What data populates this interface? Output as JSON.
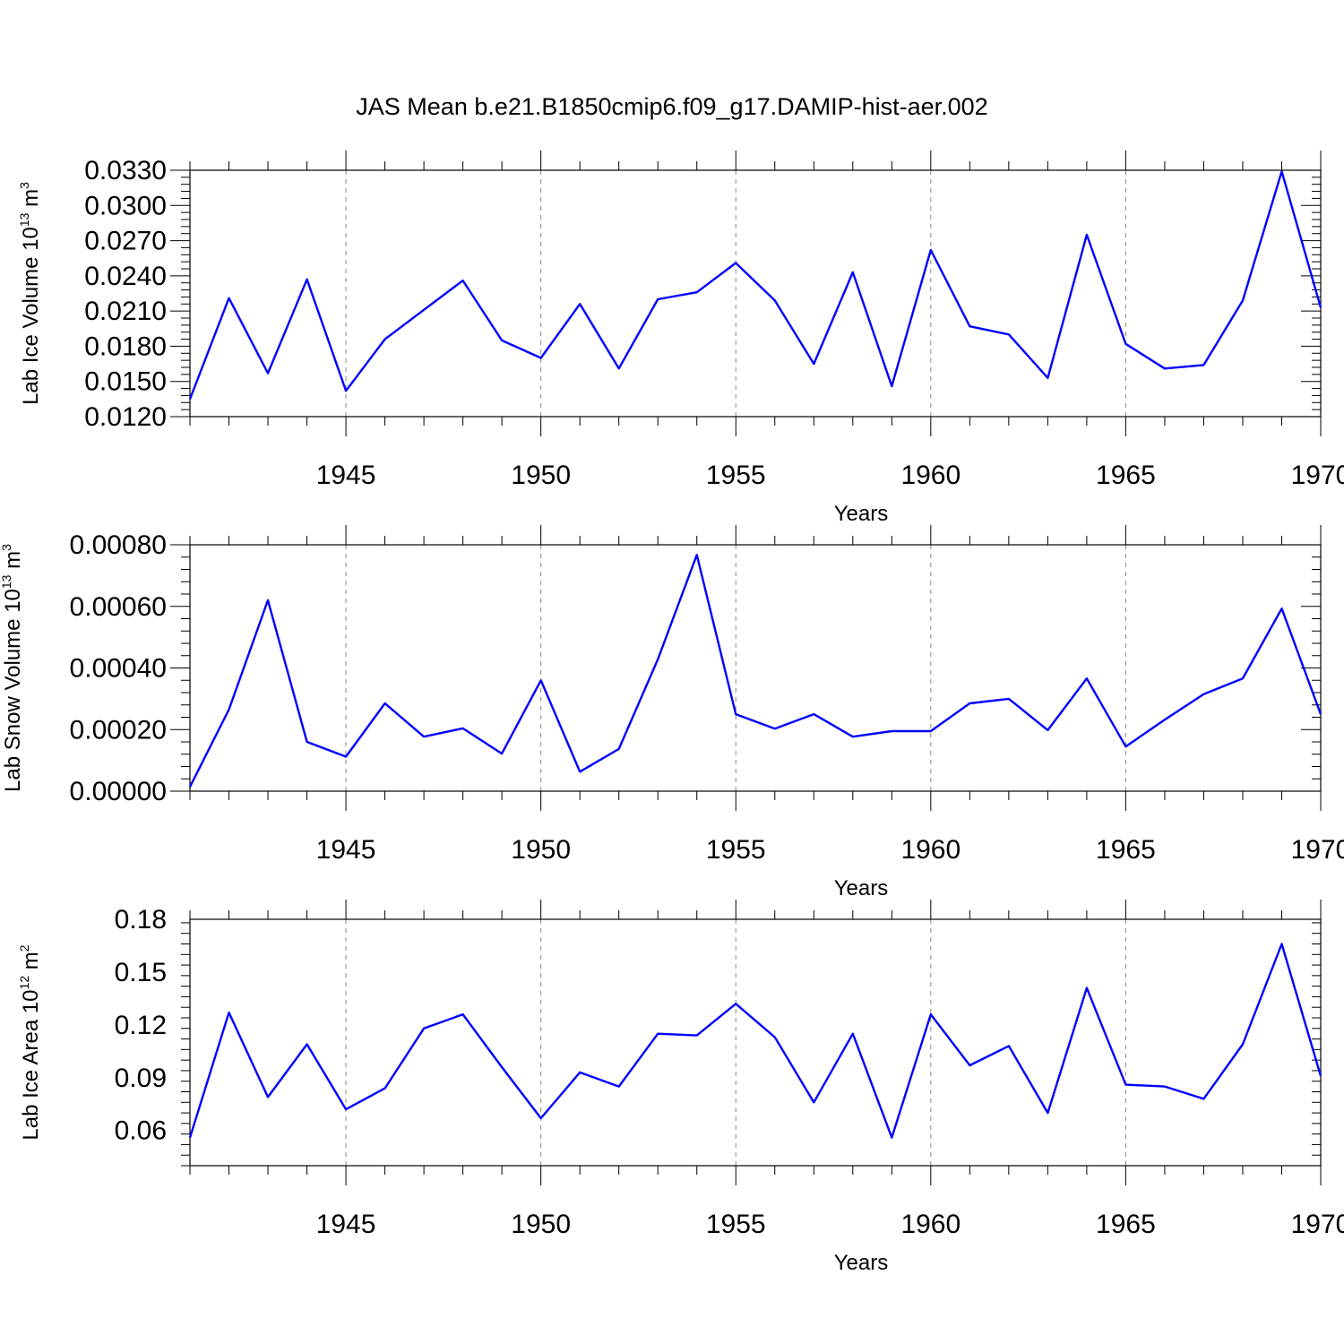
{
  "title": "JAS Mean b.e21.B1850cmip6.f09_g17.DAMIP-hist-aer.002",
  "colors": {
    "line": "#0000ff",
    "grid": "#888888"
  },
  "chart_data": [
    {
      "type": "line",
      "ylabel": {
        "main": "Lab Ice Volume 10",
        "exp": "13",
        "unit": " m",
        "unit_exp": "3"
      },
      "xlabel": "Years",
      "xlim": [
        1941,
        1970
      ],
      "xticks": [
        1945,
        1950,
        1955,
        1960,
        1965,
        1970
      ],
      "xtick_labels": [
        "1945",
        "1950",
        "1955",
        "1960",
        "1965",
        "1970"
      ],
      "ylim": [
        0.012,
        0.033
      ],
      "yticks": [
        0.012,
        0.015,
        0.018,
        0.021,
        0.024,
        0.027,
        0.03,
        0.033
      ],
      "ytick_labels": [
        "0.0120",
        "0.0150",
        "0.0180",
        "0.0210",
        "0.0240",
        "0.0270",
        "0.0300",
        "0.0330"
      ],
      "grid": "vertical dashed at major x ticks",
      "series": [
        {
          "name": "Lab Ice Volume",
          "x": [
            1941,
            1942,
            1943,
            1944,
            1945,
            1946,
            1947,
            1948,
            1949,
            1950,
            1951,
            1952,
            1953,
            1954,
            1955,
            1956,
            1957,
            1958,
            1959,
            1960,
            1961,
            1962,
            1963,
            1964,
            1965,
            1966,
            1967,
            1968,
            1969,
            1970
          ],
          "values": [
            0.0135,
            0.0221,
            0.0157,
            0.0237,
            0.0142,
            0.0186,
            0.0211,
            0.0236,
            0.0185,
            0.017,
            0.0216,
            0.0161,
            0.022,
            0.0226,
            0.0251,
            0.0219,
            0.0165,
            0.0243,
            0.0146,
            0.0262,
            0.0197,
            0.019,
            0.0153,
            0.0275,
            0.0182,
            0.0161,
            0.0164,
            0.0219,
            0.0329,
            0.0213
          ]
        }
      ]
    },
    {
      "type": "line",
      "ylabel": {
        "main": "Lab Snow Volume 10",
        "exp": "13",
        "unit": " m",
        "unit_exp": "3"
      },
      "xlabel": "Years",
      "xlim": [
        1941,
        1970
      ],
      "xticks": [
        1945,
        1950,
        1955,
        1960,
        1965,
        1970
      ],
      "xtick_labels": [
        "1945",
        "1950",
        "1955",
        "1960",
        "1965",
        "1970"
      ],
      "ylim": [
        0.0,
        0.0008
      ],
      "yticks": [
        0.0,
        0.0002,
        0.0004,
        0.0006,
        0.0008
      ],
      "ytick_labels": [
        "0.00000",
        "0.00020",
        "0.00040",
        "0.00060",
        "0.00080"
      ],
      "grid": "vertical dashed at major x ticks",
      "series": [
        {
          "name": "Lab Snow Volume",
          "x": [
            1941,
            1942,
            1943,
            1944,
            1945,
            1946,
            1947,
            1948,
            1949,
            1950,
            1951,
            1952,
            1953,
            1954,
            1955,
            1956,
            1957,
            1958,
            1959,
            1960,
            1961,
            1962,
            1963,
            1964,
            1965,
            1966,
            1967,
            1968,
            1969,
            1970
          ],
          "values": [
            1.4e-05,
            0.000265,
            0.00062,
            0.00016,
            0.000112,
            0.000285,
            0.000177,
            0.000204,
            0.000122,
            0.00036,
            6.3e-05,
            0.000137,
            0.000428,
            0.000767,
            0.00025,
            0.000203,
            0.00025,
            0.000177,
            0.000195,
            0.000195,
            0.000285,
            0.0003,
            0.000198,
            0.000366,
            0.000145,
            0.000232,
            0.000315,
            0.000366,
            0.000593,
            0.00025
          ]
        }
      ]
    },
    {
      "type": "line",
      "ylabel": {
        "main": "Lab Ice Area 10",
        "exp": "12",
        "unit": " m",
        "unit_exp": "2"
      },
      "xlabel": "Years",
      "xlim": [
        1941,
        1970
      ],
      "xticks": [
        1945,
        1950,
        1955,
        1960,
        1965,
        1970
      ],
      "xtick_labels": [
        "1945",
        "1950",
        "1955",
        "1960",
        "1965",
        "1970"
      ],
      "ylim": [
        0.04,
        0.18
      ],
      "yticks": [
        0.06,
        0.09,
        0.12,
        0.15,
        0.18
      ],
      "ytick_labels": [
        "0.06",
        "0.09",
        "0.12",
        "0.15",
        "0.18"
      ],
      "grid": "vertical dashed at major x ticks",
      "series": [
        {
          "name": "Lab Ice Area",
          "x": [
            1941,
            1942,
            1943,
            1944,
            1945,
            1946,
            1947,
            1948,
            1949,
            1950,
            1951,
            1952,
            1953,
            1954,
            1955,
            1956,
            1957,
            1958,
            1959,
            1960,
            1961,
            1962,
            1963,
            1964,
            1965,
            1966,
            1967,
            1968,
            1969,
            1970
          ],
          "values": [
            0.056,
            0.127,
            0.079,
            0.109,
            0.072,
            0.084,
            0.118,
            0.126,
            0.096,
            0.067,
            0.093,
            0.085,
            0.115,
            0.114,
            0.132,
            0.113,
            0.076,
            0.115,
            0.056,
            0.126,
            0.097,
            0.108,
            0.07,
            0.141,
            0.086,
            0.085,
            0.078,
            0.109,
            0.166,
            0.091
          ]
        }
      ]
    }
  ]
}
